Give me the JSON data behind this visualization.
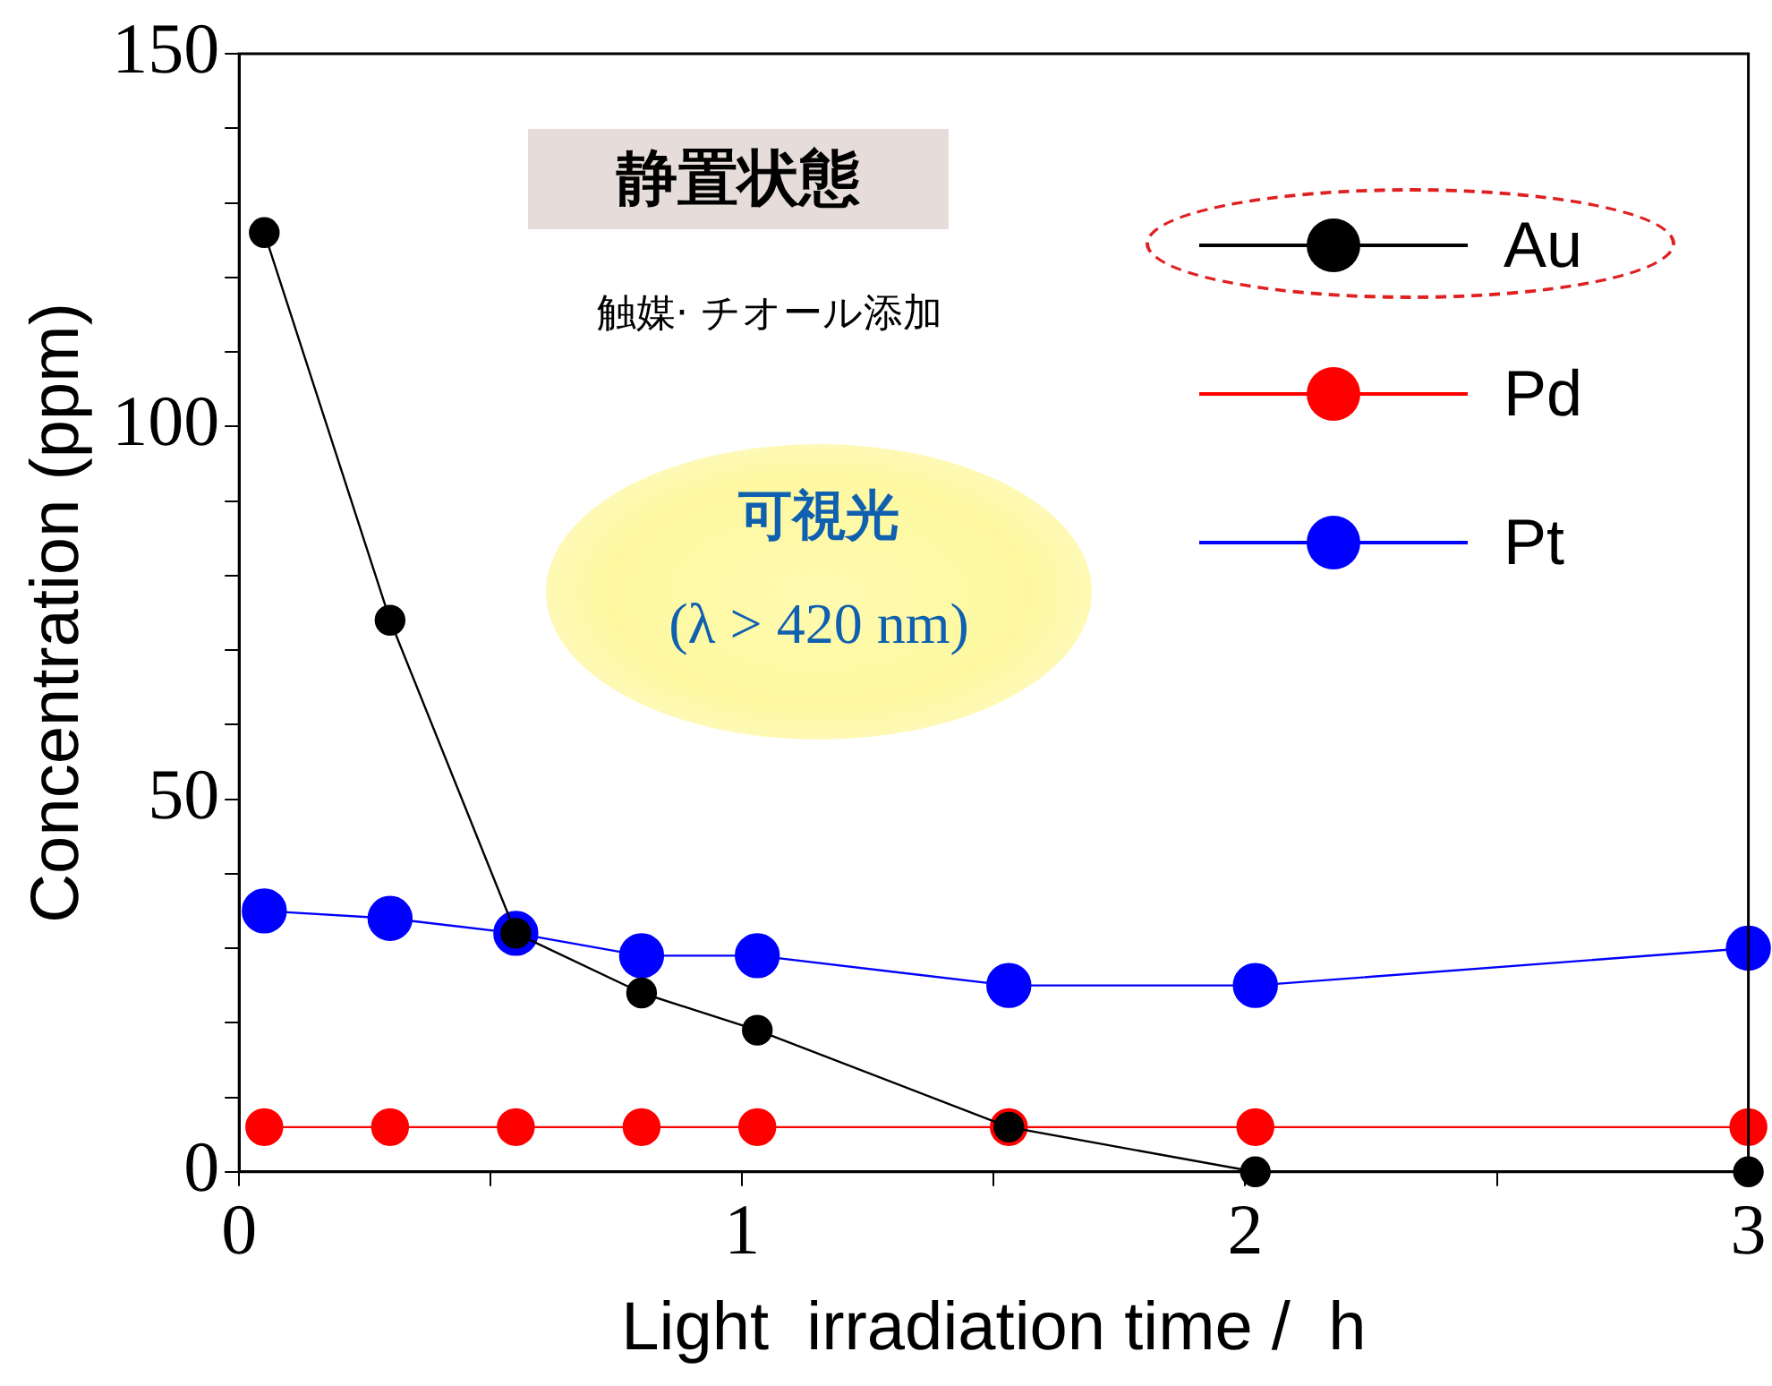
{
  "chart_data": {
    "type": "line",
    "xlabel": "Light  irradiation time /  h",
    "ylabel": "Concentration (ppm)",
    "annotations": [
      "静置状態",
      "触媒· チオール添加",
      "可視光",
      "(λ > 420 nm)"
    ],
    "x": [
      0.05,
      0.3,
      0.55,
      0.8,
      1.03,
      1.53,
      2.02,
      3
    ],
    "series": [
      {
        "name": "Au",
        "color": "#000000",
        "values": [
          126,
          74,
          32,
          24,
          19,
          6,
          0,
          0
        ]
      },
      {
        "name": "Pd",
        "color": "#ff0000",
        "values": [
          6,
          6,
          6,
          6,
          6,
          6,
          6,
          6
        ]
      },
      {
        "name": "Pt",
        "color": "#0000ff",
        "values": [
          35,
          34,
          32,
          29,
          29,
          25,
          25,
          30
        ]
      }
    ],
    "xlim": [
      0,
      3
    ],
    "xticks": [
      0,
      {
        "value": 0.5,
        "label": null
      },
      1,
      {
        "value": 1.5,
        "label": null
      },
      2,
      {
        "value": 2.5,
        "label": null
      },
      3
    ],
    "ylim": [
      0,
      150
    ],
    "yticks": [
      0,
      {
        "value": 10,
        "label": null
      },
      {
        "value": 20,
        "label": null
      },
      {
        "value": 30,
        "label": null
      },
      {
        "value": 40,
        "label": null
      },
      50,
      {
        "value": 60,
        "label": null
      },
      {
        "value": 70,
        "label": null
      },
      {
        "value": 80,
        "label": null
      },
      {
        "value": 90,
        "label": null
      },
      100,
      {
        "value": 110,
        "label": null
      },
      {
        "value": 120,
        "label": null
      },
      {
        "value": 130,
        "label": null
      },
      {
        "value": 140,
        "label": null
      },
      150
    ],
    "grid": false,
    "legend": "top right",
    "marker": "circle",
    "line_style": "solid"
  }
}
